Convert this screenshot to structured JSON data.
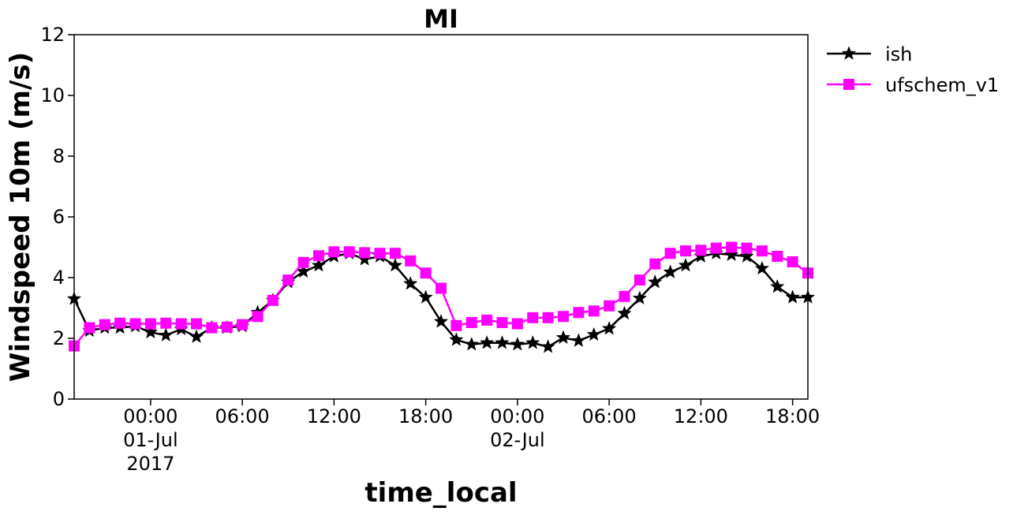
{
  "chart_data": {
    "type": "line",
    "title": "MI",
    "xlabel": "time_local",
    "ylabel": "Windspeed 10m (m/s)",
    "ylim": [
      0,
      12
    ],
    "yticks": [
      "0",
      "2",
      "4",
      "6",
      "8",
      "10",
      "12"
    ],
    "xlim": [
      "2017-06-30 19:00",
      "2017-07-02 19:00"
    ],
    "x_start": "2017-06-30 19:00",
    "x_step": "1 hour",
    "xticks": [
      {
        "time": "2017-07-01 00:00",
        "lines": [
          "00:00",
          "01-Jul",
          "2017"
        ]
      },
      {
        "time": "2017-07-01 06:00",
        "lines": [
          "06:00"
        ]
      },
      {
        "time": "2017-07-01 12:00",
        "lines": [
          "12:00"
        ]
      },
      {
        "time": "2017-07-01 18:00",
        "lines": [
          "18:00"
        ]
      },
      {
        "time": "2017-07-02 00:00",
        "lines": [
          "00:00",
          "02-Jul"
        ]
      },
      {
        "time": "2017-07-02 06:00",
        "lines": [
          "06:00"
        ]
      },
      {
        "time": "2017-07-02 12:00",
        "lines": [
          "12:00"
        ]
      },
      {
        "time": "2017-07-02 18:00",
        "lines": [
          "18:00"
        ]
      }
    ],
    "grid": false,
    "legend_position": "outside top-right",
    "series": [
      {
        "name": "ish",
        "color": "#000000",
        "marker": "star",
        "values": [
          3.3,
          2.25,
          2.35,
          2.35,
          2.4,
          2.2,
          2.1,
          2.3,
          2.05,
          2.35,
          2.35,
          2.4,
          2.85,
          3.25,
          3.85,
          4.2,
          4.4,
          4.7,
          4.8,
          4.6,
          4.7,
          4.4,
          3.8,
          3.35,
          2.55,
          1.95,
          1.8,
          1.85,
          1.85,
          1.8,
          1.85,
          1.72,
          2.02,
          1.92,
          2.12,
          2.32,
          2.82,
          3.32,
          3.85,
          4.18,
          4.4,
          4.7,
          4.8,
          4.75,
          4.7,
          4.3,
          3.7,
          3.35,
          3.35
        ]
      },
      {
        "name": "ufschem_v1",
        "color": "#ff00ff",
        "marker": "square",
        "values": [
          1.75,
          2.35,
          2.45,
          2.5,
          2.48,
          2.48,
          2.5,
          2.48,
          2.48,
          2.35,
          2.37,
          2.45,
          2.72,
          3.25,
          3.92,
          4.5,
          4.72,
          4.85,
          4.85,
          4.82,
          4.8,
          4.8,
          4.55,
          4.15,
          3.65,
          2.42,
          2.52,
          2.6,
          2.52,
          2.48,
          2.68,
          2.68,
          2.72,
          2.85,
          2.9,
          3.07,
          3.38,
          3.92,
          4.45,
          4.8,
          4.88,
          4.9,
          4.97,
          5.0,
          4.97,
          4.88,
          4.7,
          4.52,
          4.15
        ]
      }
    ]
  }
}
